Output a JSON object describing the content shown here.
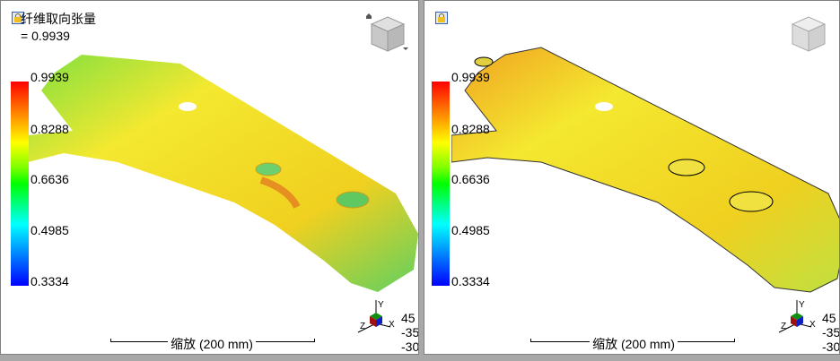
{
  "left_panel": {
    "title": "纤维取向张量",
    "value": "= 0.9939",
    "legend": [
      "0.9939",
      "0.8288",
      "0.6636",
      "0.4985",
      "0.3334"
    ],
    "scale": "缩放 (200 mm)",
    "angles": [
      "45",
      "-35",
      "-30"
    ],
    "axes": {
      "x": "X",
      "y": "Y",
      "z": "Z"
    }
  },
  "right_panel": {
    "legend": [
      "0.9939",
      "0.8288",
      "0.6636",
      "0.4985",
      "0.3334"
    ],
    "scale": "缩放 (200 mm)",
    "angles": [
      "45",
      "-35",
      "-30"
    ],
    "axes": {
      "x": "X",
      "y": "Y",
      "z": "Z"
    }
  },
  "colors": {
    "max": "#ff0000",
    "mid": "#ffff00",
    "low_mid": "#00ff00",
    "low": "#00ffff",
    "min": "#0000ff",
    "part_main": "#f2e020"
  }
}
